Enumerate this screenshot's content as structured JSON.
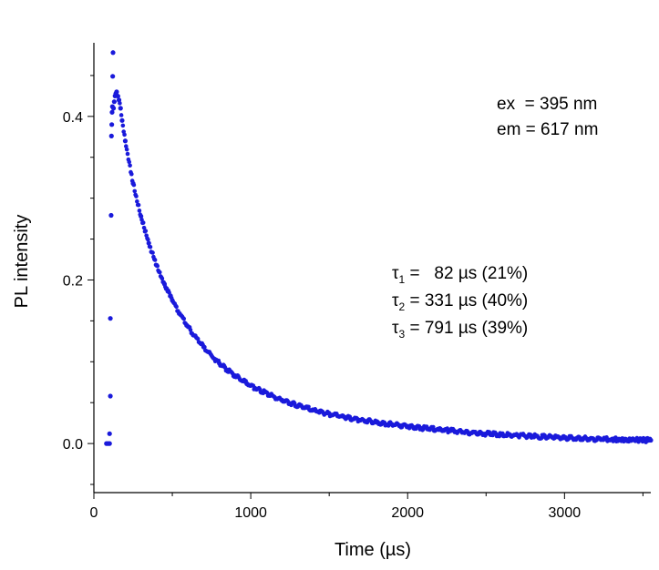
{
  "chart_data": {
    "type": "scatter",
    "title": "",
    "xlabel": "Time (µs)",
    "ylabel": "PL intensity",
    "xlim": [
      0,
      3550
    ],
    "ylim": [
      -0.06,
      0.49
    ],
    "x_ticks": [
      0,
      1000,
      2000,
      3000
    ],
    "x_tick_labels": [
      "0",
      "1000",
      "2000",
      "3000"
    ],
    "y_ticks": [
      0.0,
      0.2,
      0.4
    ],
    "y_tick_labels": [
      "0.0",
      "0.2",
      "0.4"
    ],
    "grid": false,
    "marker_color": "#1a1adb",
    "series": [
      {
        "points": [
          [
            80,
            0.0
          ],
          [
            90,
            0.0
          ],
          [
            100,
            0.0
          ],
          [
            100,
            0.012
          ],
          [
            105,
            0.058
          ],
          [
            105,
            0.153
          ],
          [
            110,
            0.279
          ],
          [
            112,
            0.376
          ],
          [
            114,
            0.39
          ],
          [
            116,
            0.405
          ],
          [
            118,
            0.412
          ],
          [
            120,
            0.449
          ],
          [
            122,
            0.478
          ],
          [
            125,
            0.41
          ],
          [
            130,
            0.418
          ],
          [
            135,
            0.425
          ],
          [
            140,
            0.428
          ],
          [
            145,
            0.43
          ],
          [
            150,
            0.425
          ],
          [
            160,
            0.42
          ],
          [
            170,
            0.41
          ],
          [
            180,
            0.395
          ],
          [
            200,
            0.37
          ],
          [
            250,
            0.318
          ],
          [
            300,
            0.278
          ],
          [
            350,
            0.245
          ],
          [
            400,
            0.218
          ],
          [
            450,
            0.195
          ],
          [
            500,
            0.175
          ],
          [
            600,
            0.143
          ],
          [
            700,
            0.118
          ],
          [
            800,
            0.098
          ],
          [
            900,
            0.083
          ],
          [
            1000,
            0.071
          ],
          [
            1200,
            0.053
          ],
          [
            1400,
            0.041
          ],
          [
            1600,
            0.032
          ],
          [
            1800,
            0.026
          ],
          [
            2000,
            0.021
          ],
          [
            2200,
            0.017
          ],
          [
            2500,
            0.012
          ],
          [
            2800,
            0.009
          ],
          [
            3000,
            0.007
          ],
          [
            3300,
            0.005
          ],
          [
            3550,
            0.004
          ]
        ]
      }
    ],
    "annotations": {
      "excitation": "ex  = 395 nm",
      "emission": "em = 617 nm",
      "tau_lines": [
        {
          "symbol": "τ",
          "sub": "1",
          "text": " =   82 µs (21%)"
        },
        {
          "symbol": "τ",
          "sub": "2",
          "text": " = 331 µs (40%)"
        },
        {
          "symbol": "τ",
          "sub": "3",
          "text": " = 791 µs (39%)"
        }
      ]
    }
  }
}
